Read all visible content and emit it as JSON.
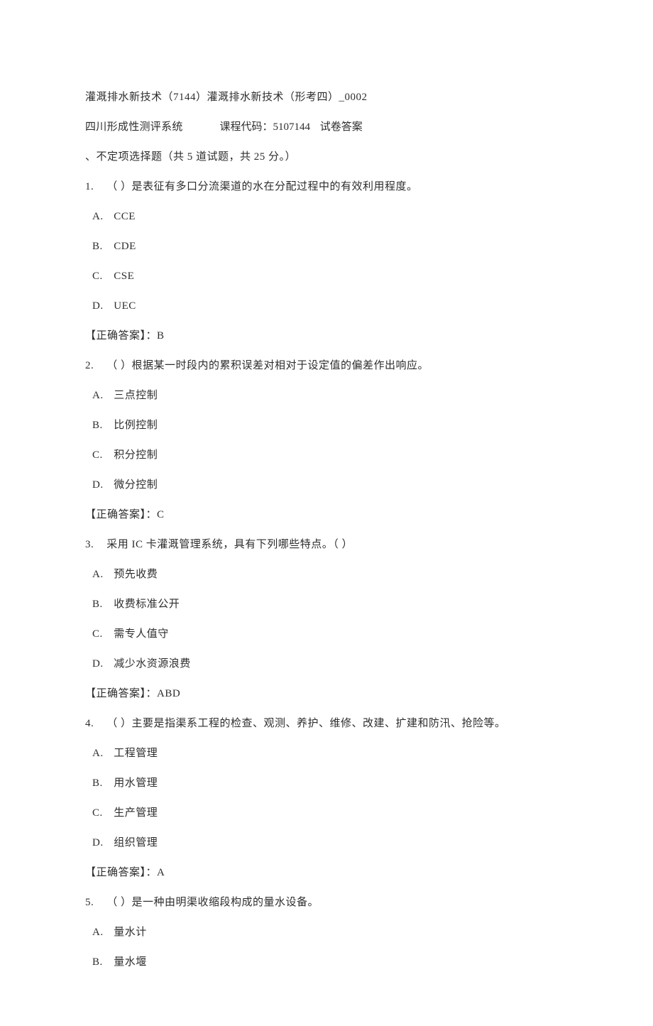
{
  "header": {
    "title": "灌溉排水新技术（7144）灌溉排水新技术（形考四）_0002"
  },
  "meta": {
    "system": "四川形成性测评系统",
    "course_code_label": "课程代码：5107144",
    "exam_label": "试卷答案"
  },
  "section": {
    "title": "、不定项选择题（共 5 道试题，共 25 分。）"
  },
  "questions": [
    {
      "num": "1.",
      "stem_prefix": "（          ）是表征有多口分流渠道的水在分配过程中的有效利用程度。",
      "options": [
        {
          "letter": "A.",
          "text": "CCE"
        },
        {
          "letter": "B.",
          "text": "CDE"
        },
        {
          "letter": "C.",
          "text": "CSE"
        },
        {
          "letter": "D.",
          "text": "UEC"
        }
      ],
      "answer_label": "【正确答案】：",
      "answer": "B"
    },
    {
      "num": "2.",
      "stem_prefix": "  （            ）根据某一时段内的累积误差对相对于设定值的偏差作出响应。",
      "options": [
        {
          "letter": "A.",
          "text": "三点控制"
        },
        {
          "letter": "B.",
          "text": "比例控制"
        },
        {
          "letter": "C.",
          "text": "积分控制"
        },
        {
          "letter": "D.",
          "text": "微分控制"
        }
      ],
      "answer_label": "【正确答案】：",
      "answer": "C"
    },
    {
      "num": "3.",
      "stem_prefix": " 采用 IC 卡灌溉管理系统，具有下列哪些特点。（            ）",
      "options": [
        {
          "letter": "A.",
          "text": "  预先收费"
        },
        {
          "letter": "B.",
          "text": "收费标准公开"
        },
        {
          "letter": "C.",
          "text": "需专人值守"
        },
        {
          "letter": "D.",
          "text": "减少水资源浪费"
        }
      ],
      "answer_label": "【正确答案】：",
      "answer": "ABD"
    },
    {
      "num": "4.",
      "stem_prefix": " （        ）主要是指渠系工程的检查、观测、养护、维修、改建、扩建和防汛、抢险等。",
      "options": [
        {
          "letter": "A.",
          "text": "工程管理"
        },
        {
          "letter": "B.",
          "text": "用水管理"
        },
        {
          "letter": "C.",
          "text": "生产管理"
        },
        {
          "letter": "D.",
          "text": "组织管理"
        }
      ],
      "answer_label": "【正确答案】：",
      "answer": "A"
    },
    {
      "num": "5.",
      "stem_prefix": " （        ）是一种由明渠收缩段构成的量水设备。",
      "options": [
        {
          "letter": "A.",
          "text": "量水计"
        },
        {
          "letter": "B.",
          "text": "量水堰"
        }
      ],
      "answer_label": "",
      "answer": ""
    }
  ]
}
